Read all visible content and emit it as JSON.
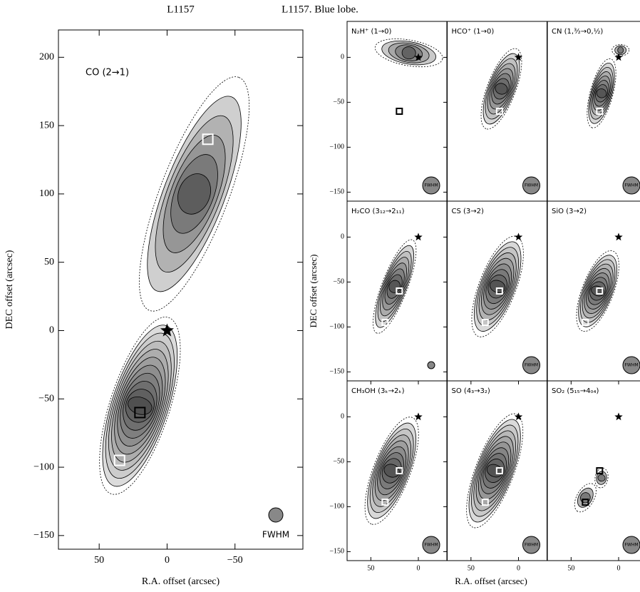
{
  "group_title": "L1157. Blue lobe.",
  "group_xlabel": "R.A. offset (arcsec)",
  "group_ylabel": "DEC offset (arcsec)",
  "chart_data": [
    {
      "type": "contour",
      "title": "L1157",
      "label": "CO (2→1)",
      "beam": "FWHM",
      "xlabel": "R.A. offset (arcsec)",
      "ylabel": "DEC offset (arcsec)",
      "xlim": [
        80,
        -100
      ],
      "ylim": [
        -160,
        220
      ],
      "xticks": [
        50,
        0,
        {
          "value": -50,
          "label": "−50"
        }
      ],
      "yticks": [
        {
          "value": -150,
          "label": "−150"
        },
        {
          "value": -100,
          "label": "−100"
        },
        {
          "value": -50,
          "label": "−50"
        },
        0,
        50,
        100,
        150,
        200
      ],
      "star": [
        0,
        0
      ],
      "squares": {
        "x": [
          20,
          35,
          -30
        ],
        "y": [
          -60,
          -95,
          140
        ]
      }
    },
    {
      "type": "contour",
      "label": "N₂H⁺ (1→0)",
      "beam": "FWHM",
      "xlim": [
        75,
        -30
      ],
      "ylim": [
        -160,
        40
      ],
      "yticks": [
        0,
        {
          "value": -50,
          "label": "−50"
        },
        {
          "value": -100,
          "label": "−100"
        },
        {
          "value": -150,
          "label": "−150"
        }
      ],
      "star": [
        0,
        0
      ],
      "squares": {
        "x": [
          20,
          35
        ],
        "y": [
          -60,
          -95
        ]
      }
    },
    {
      "type": "contour",
      "label": "HCO⁺ (1→0)",
      "beam": "FWHM",
      "xlim": [
        75,
        -30
      ],
      "ylim": [
        -160,
        40
      ],
      "star": [
        0,
        0
      ],
      "squares": {
        "x": [
          20
        ],
        "y": [
          -60
        ]
      }
    },
    {
      "type": "contour",
      "label": "CN (1,³⁄₂→0,½)",
      "beam": "FWHM",
      "xlim": [
        75,
        -30
      ],
      "ylim": [
        -160,
        40
      ],
      "star": [
        0,
        0
      ],
      "squares": {
        "x": [
          20
        ],
        "y": [
          -60
        ]
      }
    },
    {
      "type": "contour",
      "label": "H₂CO (3₁₂→2₁₁)",
      "xlim": [
        75,
        -30
      ],
      "ylim": [
        -160,
        40
      ],
      "yticks": [
        0,
        {
          "value": -50,
          "label": "−50"
        },
        {
          "value": -100,
          "label": "−100"
        },
        {
          "value": -150,
          "label": "−150"
        }
      ],
      "star": [
        0,
        0
      ],
      "squares": {
        "x": [
          20,
          35
        ],
        "y": [
          -60,
          -95
        ]
      }
    },
    {
      "type": "contour",
      "label": "CS (3→2)",
      "beam": "FWHM",
      "xlim": [
        75,
        -30
      ],
      "ylim": [
        -160,
        40
      ],
      "star": [
        0,
        0
      ],
      "squares": {
        "x": [
          20,
          35
        ],
        "y": [
          -60,
          -95
        ]
      }
    },
    {
      "type": "contour",
      "label": "SiO (3→2)",
      "beam": "FWHM",
      "xlim": [
        75,
        -30
      ],
      "ylim": [
        -160,
        40
      ],
      "star": [
        0,
        0
      ],
      "squares": {
        "x": [
          20,
          35
        ],
        "y": [
          -60,
          -95
        ]
      }
    },
    {
      "type": "contour",
      "label": "CH₃OH (3ₖ→2ₖ)",
      "beam": "FWHM",
      "xlim": [
        75,
        -30
      ],
      "ylim": [
        -160,
        40
      ],
      "xticks": [
        50,
        0
      ],
      "yticks": [
        0,
        {
          "value": -50,
          "label": "−50"
        },
        {
          "value": -100,
          "label": "−100"
        },
        {
          "value": -150,
          "label": "−150"
        }
      ],
      "star": [
        0,
        0
      ],
      "squares": {
        "x": [
          20,
          35
        ],
        "y": [
          -60,
          -95
        ]
      }
    },
    {
      "type": "contour",
      "label": "SO (4₃→3₂)",
      "beam": "FWHM",
      "xlim": [
        75,
        -30
      ],
      "ylim": [
        -160,
        40
      ],
      "xticks": [
        50,
        0
      ],
      "star": [
        0,
        0
      ],
      "squares": {
        "x": [
          20,
          35
        ],
        "y": [
          -60,
          -95
        ]
      }
    },
    {
      "type": "contour",
      "label": "SO₂ (5₁₅→4₀₄)",
      "beam": "FWHM",
      "xlim": [
        75,
        -30
      ],
      "ylim": [
        -160,
        40
      ],
      "xticks": [
        50,
        0
      ],
      "star": [
        0,
        0
      ],
      "squares": {
        "x": [
          20,
          35
        ],
        "y": [
          -60,
          -95
        ]
      }
    }
  ]
}
